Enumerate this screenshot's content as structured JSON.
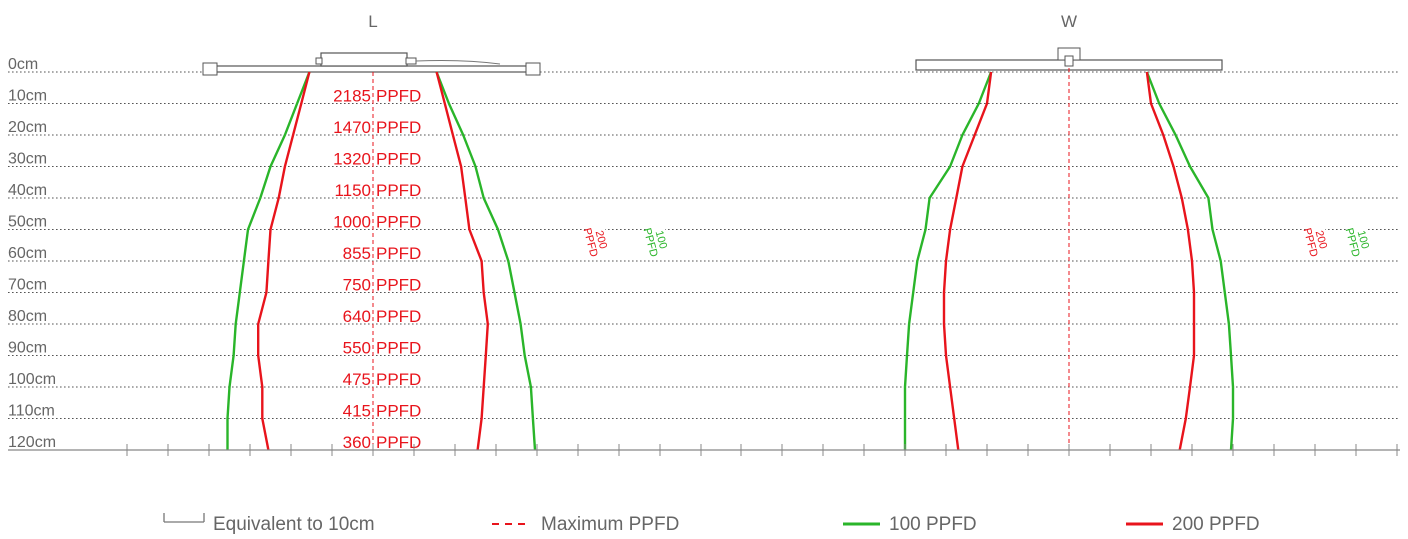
{
  "chart_data": {
    "type": "line",
    "panels": [
      {
        "title": "L",
        "contours": {
          "100": {
            "left": [
              [
                0,
                -15.5
              ],
              [
                10,
                -18.5
              ],
              [
                20,
                -21.5
              ],
              [
                30,
                -25
              ],
              [
                40,
                -27.5
              ],
              [
                50,
                -30.5
              ],
              [
                60,
                -31.5
              ],
              [
                70,
                -32.5
              ],
              [
                80,
                -33.5
              ],
              [
                90,
                -34
              ],
              [
                100,
                -35
              ],
              [
                110,
                -35.5
              ],
              [
                120,
                -35.5
              ]
            ],
            "right": [
              [
                0,
                15.5
              ],
              [
                10,
                18.5
              ],
              [
                20,
                22
              ],
              [
                30,
                25
              ],
              [
                40,
                27
              ],
              [
                50,
                30.5
              ],
              [
                60,
                33
              ],
              [
                70,
                34.5
              ],
              [
                80,
                36
              ],
              [
                90,
                37
              ],
              [
                100,
                38.5
              ],
              [
                110,
                39
              ],
              [
                120,
                39.5
              ]
            ]
          },
          "200": {
            "left": [
              [
                0,
                -15.5
              ],
              [
                10,
                -17.5
              ],
              [
                20,
                -19.5
              ],
              [
                30,
                -21.5
              ],
              [
                40,
                -23
              ],
              [
                50,
                -25
              ],
              [
                60,
                -25.5
              ],
              [
                70,
                -26
              ],
              [
                80,
                -28
              ],
              [
                90,
                -28
              ],
              [
                100,
                -27
              ],
              [
                110,
                -27
              ],
              [
                120,
                -25.5
              ]
            ],
            "right": [
              [
                0,
                15.5
              ],
              [
                10,
                17.5
              ],
              [
                20,
                19.5
              ],
              [
                30,
                21.5
              ],
              [
                40,
                22.5
              ],
              [
                50,
                23.5
              ],
              [
                60,
                26.5
              ],
              [
                70,
                27
              ],
              [
                80,
                28
              ],
              [
                90,
                27.5
              ],
              [
                100,
                27
              ],
              [
                110,
                26.5
              ],
              [
                120,
                25.5
              ]
            ]
          }
        },
        "center_ppfd": [
          {
            "depth": "10cm",
            "value": "2185",
            "unit": "PPFD"
          },
          {
            "depth": "20cm",
            "value": "1470",
            "unit": "PPFD"
          },
          {
            "depth": "30cm",
            "value": "1320",
            "unit": "PPFD"
          },
          {
            "depth": "40cm",
            "value": "1150",
            "unit": "PPFD"
          },
          {
            "depth": "50cm",
            "value": "1000",
            "unit": "PPFD"
          },
          {
            "depth": "60cm",
            "value": "855",
            "unit": "PPFD"
          },
          {
            "depth": "70cm",
            "value": "750",
            "unit": "PPFD"
          },
          {
            "depth": "80cm",
            "value": "640",
            "unit": "PPFD"
          },
          {
            "depth": "90cm",
            "value": "550",
            "unit": "PPFD"
          },
          {
            "depth": "100cm",
            "value": "475",
            "unit": "PPFD"
          },
          {
            "depth": "110cm",
            "value": "415",
            "unit": "PPFD"
          },
          {
            "depth": "120cm",
            "value": "360",
            "unit": "PPFD"
          }
        ]
      },
      {
        "title": "W",
        "contours": {
          "100": {
            "left": [
              [
                0,
                -19
              ],
              [
                10,
                -22
              ],
              [
                20,
                -26
              ],
              [
                30,
                -29
              ],
              [
                40,
                -34
              ],
              [
                50,
                -35
              ],
              [
                60,
                -37
              ],
              [
                70,
                -38
              ],
              [
                80,
                -39
              ],
              [
                90,
                -39.5
              ],
              [
                100,
                -40
              ],
              [
                110,
                -40
              ],
              [
                120,
                -40
              ]
            ],
            "right": [
              [
                0,
                19
              ],
              [
                10,
                22
              ],
              [
                20,
                26
              ],
              [
                30,
                29.5
              ],
              [
                40,
                34
              ],
              [
                50,
                35
              ],
              [
                60,
                37
              ],
              [
                70,
                38
              ],
              [
                80,
                39
              ],
              [
                90,
                39.5
              ],
              [
                100,
                40
              ],
              [
                110,
                40
              ],
              [
                120,
                39.5
              ]
            ]
          },
          "200": {
            "left": [
              [
                0,
                -19
              ],
              [
                10,
                -20
              ],
              [
                20,
                -23
              ],
              [
                30,
                -26
              ],
              [
                40,
                -27.5
              ],
              [
                50,
                -29
              ],
              [
                60,
                -30
              ],
              [
                70,
                -30.5
              ],
              [
                80,
                -30.5
              ],
              [
                90,
                -30
              ],
              [
                100,
                -29
              ],
              [
                110,
                -28
              ],
              [
                120,
                -27
              ]
            ],
            "right": [
              [
                0,
                19
              ],
              [
                10,
                20
              ],
              [
                20,
                23
              ],
              [
                30,
                25.5
              ],
              [
                40,
                27.5
              ],
              [
                50,
                29
              ],
              [
                60,
                30
              ],
              [
                70,
                30.5
              ],
              [
                80,
                30.5
              ],
              [
                90,
                30.5
              ],
              [
                100,
                29.5
              ],
              [
                110,
                28.5
              ],
              [
                120,
                27
              ]
            ]
          }
        }
      }
    ],
    "depth_labels": [
      "0cm",
      "10cm",
      "20cm",
      "30cm",
      "40cm",
      "50cm",
      "60cm",
      "70cm",
      "80cm",
      "90cm",
      "100cm",
      "110cm",
      "120cm"
    ],
    "contour_labels": {
      "100": [
        "100",
        "PPFD"
      ],
      "200": [
        "200",
        "PPFD"
      ]
    },
    "legend": {
      "scale": "Equivalent to 10cm",
      "max": "Maximum PPFD",
      "c100": "100 PPFD",
      "c200": "200 PPFD"
    },
    "colors": {
      "c100": "#2ab52a",
      "c200": "#e8141c",
      "max": "#e8141c",
      "axis": "#777777",
      "text": "#666666"
    }
  }
}
